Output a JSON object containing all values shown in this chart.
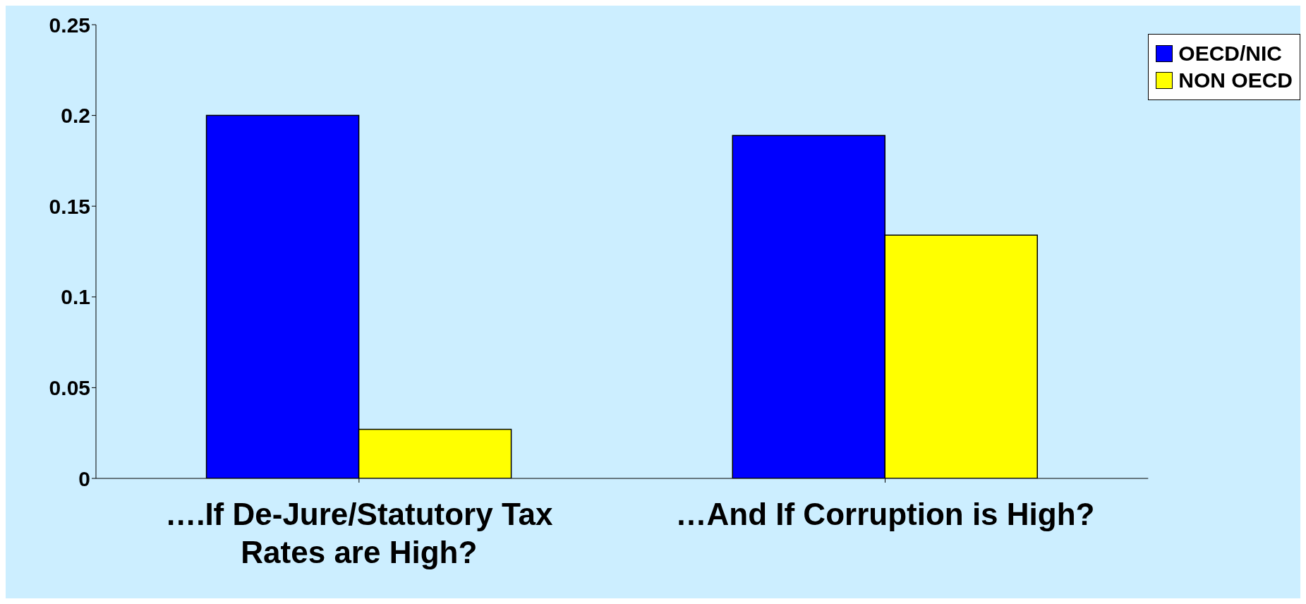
{
  "chart_data": {
    "type": "bar",
    "categories": [
      "….If De-Jure/Statutory Tax Rates are High?",
      "…And If Corruption is High?"
    ],
    "series": [
      {
        "name": "OECD/NIC",
        "color": "#0000ff",
        "values": [
          0.2,
          0.189
        ]
      },
      {
        "name": "NON OECD",
        "color": "#ffff00",
        "values": [
          0.027,
          0.134
        ]
      }
    ],
    "ylim": [
      0,
      0.25
    ],
    "yticks": [
      0,
      0.05,
      0.1,
      0.15,
      0.2,
      0.25
    ],
    "grid": false,
    "legend": "top right"
  }
}
